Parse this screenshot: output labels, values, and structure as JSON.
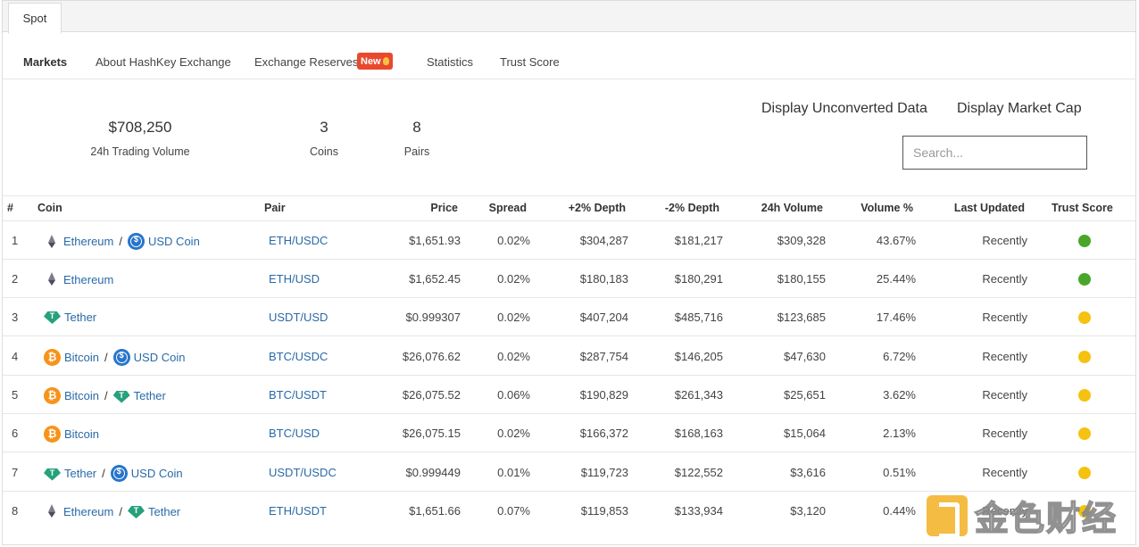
{
  "tabs": {
    "spot": "Spot"
  },
  "subnav": {
    "markets": "Markets",
    "about": "About HashKey Exchange",
    "reserves": "Exchange Reserves",
    "new_badge": "New",
    "statistics": "Statistics",
    "trust_score": "Trust Score"
  },
  "stats": {
    "volume": "$708,250",
    "volume_label": "24h Trading Volume",
    "coins": "3",
    "coins_label": "Coins",
    "pairs": "8",
    "pairs_label": "Pairs"
  },
  "options": {
    "unconverted": "Display Unconverted Data",
    "market_cap": "Display Market Cap"
  },
  "search": {
    "placeholder": "Search..."
  },
  "table": {
    "headers": {
      "num": "#",
      "coin": "Coin",
      "pair": "Pair",
      "price": "Price",
      "spread": "Spread",
      "depth_plus": "+2% Depth",
      "depth_minus": "-2% Depth",
      "volume": "24h Volume",
      "volume_pct": "Volume %",
      "last_updated": "Last Updated",
      "trust": "Trust Score"
    },
    "rows": [
      {
        "num": "1",
        "base": "Ethereum",
        "quote": "USD Coin",
        "pair": "ETH/USDC",
        "price": "$1,651.93",
        "spread": "0.02%",
        "dplus": "$304,287",
        "dminus": "$181,217",
        "vol": "$309,328",
        "volpct": "43.67%",
        "updated": "Recently",
        "trust": "green"
      },
      {
        "num": "2",
        "base": "Ethereum",
        "quote": "",
        "pair": "ETH/USD",
        "price": "$1,652.45",
        "spread": "0.02%",
        "dplus": "$180,183",
        "dminus": "$180,291",
        "vol": "$180,155",
        "volpct": "25.44%",
        "updated": "Recently",
        "trust": "green"
      },
      {
        "num": "3",
        "base": "Tether",
        "quote": "",
        "pair": "USDT/USD",
        "price": "$0.999307",
        "spread": "0.02%",
        "dplus": "$407,204",
        "dminus": "$485,716",
        "vol": "$123,685",
        "volpct": "17.46%",
        "updated": "Recently",
        "trust": "yellow"
      },
      {
        "num": "4",
        "base": "Bitcoin",
        "quote": "USD Coin",
        "pair": "BTC/USDC",
        "price": "$26,076.62",
        "spread": "0.02%",
        "dplus": "$287,754",
        "dminus": "$146,205",
        "vol": "$47,630",
        "volpct": "6.72%",
        "updated": "Recently",
        "trust": "yellow"
      },
      {
        "num": "5",
        "base": "Bitcoin",
        "quote": "Tether",
        "pair": "BTC/USDT",
        "price": "$26,075.52",
        "spread": "0.06%",
        "dplus": "$190,829",
        "dminus": "$261,343",
        "vol": "$25,651",
        "volpct": "3.62%",
        "updated": "Recently",
        "trust": "yellow"
      },
      {
        "num": "6",
        "base": "Bitcoin",
        "quote": "",
        "pair": "BTC/USD",
        "price": "$26,075.15",
        "spread": "0.02%",
        "dplus": "$166,372",
        "dminus": "$168,163",
        "vol": "$15,064",
        "volpct": "2.13%",
        "updated": "Recently",
        "trust": "yellow"
      },
      {
        "num": "7",
        "base": "Tether",
        "quote": "USD Coin",
        "pair": "USDT/USDC",
        "price": "$0.999449",
        "spread": "0.01%",
        "dplus": "$119,723",
        "dminus": "$122,552",
        "vol": "$3,616",
        "volpct": "0.51%",
        "updated": "Recently",
        "trust": "yellow"
      },
      {
        "num": "8",
        "base": "Ethereum",
        "quote": "Tether",
        "pair": "ETH/USDT",
        "price": "$1,651.66",
        "spread": "0.07%",
        "dplus": "$119,853",
        "dminus": "$133,934",
        "vol": "$3,120",
        "volpct": "0.44%",
        "updated": "Recently",
        "trust": "yellow"
      }
    ]
  },
  "icons": {
    "Ethereum": "ethereum-icon",
    "USD Coin": "usd-coin-icon",
    "Bitcoin": "bitcoin-icon",
    "Tether": "tether-icon"
  },
  "colors": {
    "green": "#4aa62a",
    "yellow": "#f5c211",
    "link": "#2a6aa8",
    "badge": "#e8492d"
  },
  "watermark": {
    "text": "金色财经"
  }
}
